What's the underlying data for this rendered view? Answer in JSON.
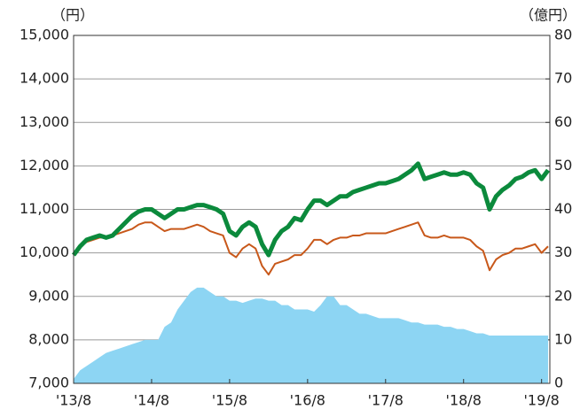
{
  "chart_data": {
    "type": "line",
    "y_axis_label": "（円）",
    "y2_axis_label": "（億円）",
    "categories": [
      "'13/8",
      null,
      null,
      null,
      null,
      null,
      null,
      null,
      null,
      null,
      null,
      null,
      "'14/8",
      null,
      null,
      null,
      null,
      null,
      null,
      null,
      null,
      null,
      null,
      null,
      "'15/8",
      null,
      null,
      null,
      null,
      null,
      null,
      null,
      null,
      null,
      null,
      null,
      "'16/8",
      null,
      null,
      null,
      null,
      null,
      null,
      null,
      null,
      null,
      null,
      null,
      "'17/8",
      null,
      null,
      null,
      null,
      null,
      null,
      null,
      null,
      null,
      null,
      null,
      "'18/8",
      null,
      null,
      null,
      null,
      null,
      null,
      null,
      null,
      null,
      null,
      null,
      "'19/8",
      null
    ],
    "ylim": [
      7000,
      15000
    ],
    "yticks": [
      {
        "value": 7000,
        "label": "7,000"
      },
      {
        "value": 8000,
        "label": "8,000"
      },
      {
        "value": 9000,
        "label": "9,000"
      },
      {
        "value": 10000,
        "label": "10,000"
      },
      {
        "value": 11000,
        "label": "11,000"
      },
      {
        "value": 12000,
        "label": "12,000"
      },
      {
        "value": 13000,
        "label": "13,000"
      },
      {
        "value": 14000,
        "label": "14,000"
      },
      {
        "value": 15000,
        "label": "15,000"
      }
    ],
    "y2lim": [
      0,
      80
    ],
    "y2ticks": [
      0,
      10,
      20,
      30,
      40,
      50,
      60,
      70,
      80
    ],
    "grid": true,
    "series": [
      {
        "type": "area",
        "axis": "y2",
        "color": "#8dd5f3",
        "values": [
          1,
          3,
          4,
          5,
          6,
          7,
          7.5,
          8,
          8.5,
          9,
          9.5,
          10,
          10,
          10,
          13,
          14,
          17,
          19,
          21,
          22,
          22,
          21,
          20,
          20,
          19,
          19,
          18.5,
          19,
          19.5,
          19.5,
          19,
          19,
          18,
          18,
          17,
          17,
          17,
          16.5,
          18,
          20,
          20,
          18,
          18,
          17,
          16,
          16,
          15.5,
          15,
          15,
          15,
          15,
          14.5,
          14,
          14,
          13.5,
          13.5,
          13.5,
          13,
          13,
          12.5,
          12.5,
          12,
          11.5,
          11.5,
          11,
          11,
          11,
          11,
          11,
          11,
          11,
          11,
          11,
          11
        ]
      },
      {
        "type": "line",
        "color": "#c8581a",
        "width": 2,
        "values": [
          9950,
          10150,
          10250,
          10300,
          10350,
          10350,
          10400,
          10450,
          10500,
          10550,
          10650,
          10700,
          10700,
          10600,
          10500,
          10550,
          10550,
          10550,
          10600,
          10650,
          10600,
          10500,
          10450,
          10400,
          10000,
          9900,
          10100,
          10200,
          10100,
          9700,
          9500,
          9750,
          9800,
          9850,
          9950,
          9950,
          10100,
          10300,
          10300,
          10200,
          10300,
          10350,
          10350,
          10400,
          10400,
          10450,
          10450,
          10450,
          10450,
          10500,
          10550,
          10600,
          10650,
          10700,
          10400,
          10350,
          10350,
          10400,
          10350,
          10350,
          10350,
          10300,
          10150,
          10050,
          9600,
          9850,
          9950,
          10000,
          10100,
          10100,
          10150,
          10200,
          10000,
          10150
        ]
      },
      {
        "type": "line",
        "color": "#0b8a3c",
        "width": 5,
        "values": [
          9950,
          10150,
          10300,
          10350,
          10400,
          10350,
          10400,
          10550,
          10700,
          10850,
          10950,
          11000,
          11000,
          10900,
          10800,
          10900,
          11000,
          11000,
          11050,
          11100,
          11100,
          11050,
          11000,
          10900,
          10500,
          10400,
          10600,
          10700,
          10600,
          10200,
          9950,
          10300,
          10500,
          10600,
          10800,
          10750,
          11000,
          11200,
          11200,
          11100,
          11200,
          11300,
          11300,
          11400,
          11450,
          11500,
          11550,
          11600,
          11600,
          11650,
          11700,
          11800,
          11900,
          12050,
          11700,
          11750,
          11800,
          11850,
          11800,
          11800,
          11850,
          11800,
          11600,
          11500,
          11000,
          11300,
          11450,
          11550,
          11700,
          11750,
          11850,
          11900,
          11700,
          11900
        ]
      }
    ]
  }
}
